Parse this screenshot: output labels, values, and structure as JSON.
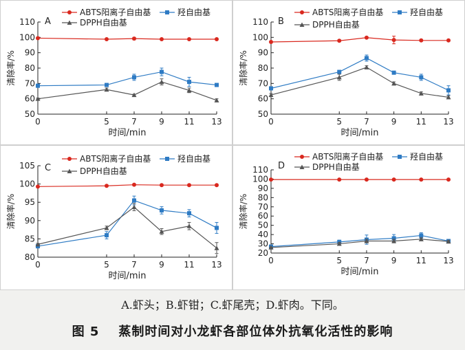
{
  "legend_labels": {
    "abts": "ABTS阳离子自由基",
    "oh": "羟自由基",
    "dpph": "DPPH自由基"
  },
  "colors": {
    "abts": "#d9281e",
    "oh": "#2e7bc4",
    "dpph": "#555555"
  },
  "chart_data": [
    {
      "panel": "A",
      "type": "line",
      "xlabel": "时间/min",
      "ylabel": "清除率/%",
      "x": [
        0,
        5,
        7,
        9,
        11,
        13
      ],
      "ylim": [
        50,
        110
      ],
      "yticks": [
        50,
        60,
        70,
        80,
        90,
        100,
        110
      ],
      "series": [
        {
          "key": "abts",
          "name": "ABTS阳离子自由基",
          "marker": "circle",
          "values": [
            99.5,
            98.8,
            99.2,
            98.8,
            98.8,
            98.8
          ],
          "err": [
            0.3,
            0.3,
            0.8,
            0.3,
            0.3,
            0.3
          ]
        },
        {
          "key": "oh",
          "name": "羟自由基",
          "marker": "square",
          "values": [
            68.5,
            69.0,
            74.0,
            77.5,
            71.0,
            69.0
          ],
          "err": [
            1.0,
            1.0,
            2.0,
            2.5,
            3.0,
            1.0
          ]
        },
        {
          "key": "dpph",
          "name": "DPPH自由基",
          "marker": "triangle",
          "values": [
            60.0,
            66.0,
            62.5,
            71.0,
            65.5,
            59.0
          ],
          "err": [
            0.5,
            1.0,
            0.5,
            2.0,
            1.5,
            1.0
          ]
        }
      ]
    },
    {
      "panel": "B",
      "type": "line",
      "xlabel": "时间/min",
      "ylabel": "清除率/%",
      "x": [
        0,
        5,
        7,
        9,
        11,
        13
      ],
      "ylim": [
        50,
        110
      ],
      "yticks": [
        50,
        60,
        70,
        80,
        90,
        100,
        110
      ],
      "series": [
        {
          "key": "abts",
          "name": "ABTS阳离子自由基",
          "marker": "circle",
          "values": [
            97.0,
            97.8,
            99.8,
            98.3,
            98.0,
            98.0
          ],
          "err": [
            0.5,
            0.5,
            0.5,
            2.5,
            0.5,
            0.5
          ]
        },
        {
          "key": "oh",
          "name": "羟自由基",
          "marker": "square",
          "values": [
            66.8,
            77.5,
            86.5,
            77.0,
            74.0,
            65.5
          ],
          "err": [
            1.0,
            1.0,
            2.0,
            1.0,
            2.0,
            3.0
          ]
        },
        {
          "key": "dpph",
          "name": "DPPH自由基",
          "marker": "triangle",
          "values": [
            62.5,
            74.0,
            80.5,
            70.0,
            63.5,
            61.0
          ],
          "err": [
            1.0,
            2.0,
            1.0,
            1.0,
            1.0,
            1.0
          ]
        }
      ]
    },
    {
      "panel": "C",
      "type": "line",
      "xlabel": "时间/min",
      "ylabel": "清除率/%",
      "x": [
        0,
        5,
        7,
        9,
        11,
        13
      ],
      "ylim": [
        80,
        105
      ],
      "yticks": [
        80,
        85,
        90,
        95,
        100,
        105
      ],
      "series": [
        {
          "key": "abts",
          "name": "ABTS阳离子自由基",
          "marker": "circle",
          "values": [
            99.3,
            99.5,
            99.8,
            99.7,
            99.7,
            99.7
          ],
          "err": [
            0.2,
            0.2,
            0.2,
            0.2,
            0.2,
            0.2
          ]
        },
        {
          "key": "oh",
          "name": "羟自由基",
          "marker": "square",
          "values": [
            83.0,
            86.0,
            95.5,
            92.8,
            92.0,
            88.0
          ],
          "err": [
            0.5,
            1.0,
            1.2,
            1.0,
            1.0,
            1.5
          ]
        },
        {
          "key": "dpph",
          "name": "DPPH自由基",
          "marker": "triangle",
          "values": [
            83.5,
            88.0,
            93.7,
            87.0,
            88.5,
            82.5
          ],
          "err": [
            0.3,
            0.5,
            1.0,
            0.8,
            1.0,
            1.5
          ]
        }
      ]
    },
    {
      "panel": "D",
      "type": "line",
      "xlabel": "时间/min",
      "ylabel": "清除率/%",
      "x": [
        0,
        5,
        7,
        9,
        11,
        13
      ],
      "ylim": [
        20,
        110
      ],
      "yticks": [
        20,
        30,
        40,
        50,
        60,
        70,
        80,
        90,
        100,
        110
      ],
      "series": [
        {
          "key": "abts",
          "name": "ABTS阳离子自由基",
          "marker": "circle",
          "values": [
            99.5,
            99.5,
            99.5,
            99.5,
            99.5,
            99.5
          ],
          "err": [
            0.3,
            0.3,
            0.3,
            0.3,
            0.3,
            0.3
          ]
        },
        {
          "key": "oh",
          "name": "羟自由基",
          "marker": "square",
          "values": [
            27.0,
            32.0,
            34.5,
            36.0,
            39.0,
            33.0
          ],
          "err": [
            1.5,
            2.0,
            5.0,
            4.0,
            3.0,
            1.5
          ]
        },
        {
          "key": "dpph",
          "name": "DPPH自由基",
          "marker": "triangle",
          "values": [
            26.0,
            30.0,
            33.0,
            33.0,
            35.0,
            32.5
          ],
          "err": [
            0.5,
            1.5,
            2.0,
            2.0,
            1.5,
            1.0
          ]
        }
      ]
    }
  ],
  "caption": {
    "subcaption": "A.虾头；B.虾钳；C.虾尾壳；D.虾肉。下同。",
    "fig_number": "图 5",
    "title": "蒸制时间对小龙虾各部位体外抗氧化活性的影响"
  }
}
